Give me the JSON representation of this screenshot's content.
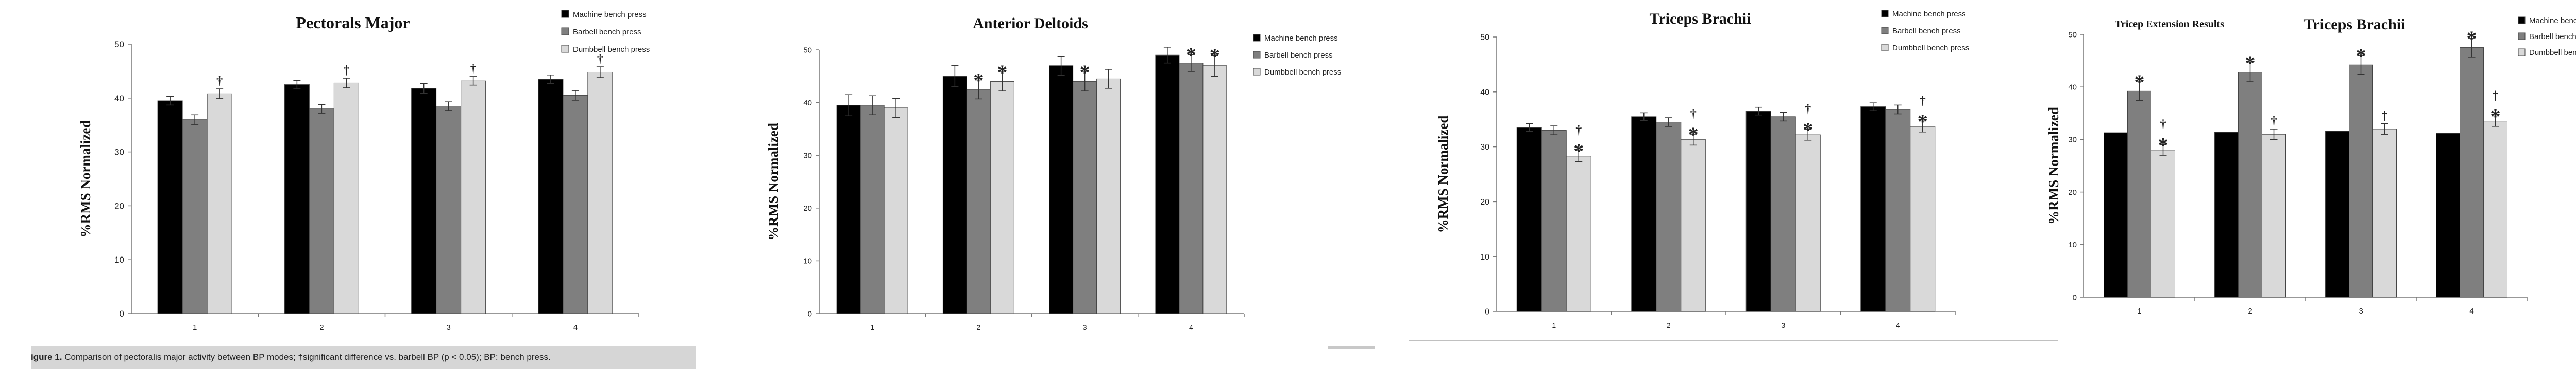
{
  "caption": {
    "label": "igure 1.",
    "text": "Comparison of pectoralis major activity between BP modes; †significant difference vs. barbell BP (p < 0.05); BP: bench press."
  },
  "chart_data": [
    {
      "type": "bar",
      "title": "Pectorals Major",
      "ylabel": "%RMS Normalized",
      "xlabel": "",
      "categories": [
        "1",
        "2",
        "3",
        "4"
      ],
      "ylim": [
        0,
        50
      ],
      "yticks": [
        0,
        10,
        20,
        30,
        40,
        50
      ],
      "legend_position": "top-right",
      "series": [
        {
          "name": "Machine bench press",
          "color": "#000000",
          "values": [
            39.5,
            42.5,
            41.8,
            43.5
          ],
          "errors": [
            0.8,
            0.8,
            0.9,
            0.8
          ],
          "marks": [
            "",
            "",
            "",
            ""
          ]
        },
        {
          "name": "Barbell bench press",
          "color": "#7f7f7f",
          "values": [
            36.0,
            38.0,
            38.5,
            40.5
          ],
          "errors": [
            0.9,
            0.8,
            0.8,
            0.9
          ],
          "marks": [
            "",
            "",
            "",
            ""
          ]
        },
        {
          "name": "Dumbbell bench press",
          "color": "#d9d9d9",
          "values": [
            40.8,
            42.8,
            43.2,
            44.8
          ],
          "errors": [
            0.9,
            0.9,
            0.8,
            1.0
          ],
          "marks": [
            "†",
            "†",
            "†",
            "†"
          ]
        }
      ]
    },
    {
      "type": "bar",
      "title": "Anterior Deltoids",
      "ylabel": "%RMS Normalized",
      "xlabel": "",
      "categories": [
        "1",
        "2",
        "3",
        "4"
      ],
      "ylim": [
        0,
        50
      ],
      "yticks": [
        0,
        10,
        20,
        30,
        40,
        50
      ],
      "legend_position": "right",
      "series": [
        {
          "name": "Machine bench press",
          "color": "#000000",
          "values": [
            39.5,
            45.0,
            47.0,
            49.0
          ],
          "errors": [
            2.0,
            2.0,
            1.8,
            1.5
          ],
          "marks": [
            "",
            "",
            "",
            ""
          ]
        },
        {
          "name": "Barbell bench press",
          "color": "#7f7f7f",
          "values": [
            39.5,
            42.5,
            44.0,
            47.5
          ],
          "errors": [
            1.8,
            1.8,
            1.8,
            1.6
          ],
          "marks": [
            "",
            "*",
            "*",
            "*"
          ]
        },
        {
          "name": "Dumbbell bench press",
          "color": "#d9d9d9",
          "values": [
            39.0,
            44.0,
            44.5,
            47.0
          ],
          "errors": [
            1.8,
            1.8,
            1.8,
            2.0
          ],
          "marks": [
            "",
            "*",
            "",
            "*"
          ]
        }
      ]
    },
    {
      "type": "bar",
      "title": "Triceps Brachii",
      "ylabel": "%RMS Normalized",
      "xlabel": "",
      "categories": [
        "1",
        "2",
        "3",
        "4"
      ],
      "ylim": [
        0,
        50
      ],
      "yticks": [
        0,
        10,
        20,
        30,
        40,
        50
      ],
      "legend_position": "top-right",
      "series": [
        {
          "name": "Machine bench press",
          "color": "#000000",
          "values": [
            33.5,
            35.5,
            36.5,
            37.3
          ],
          "errors": [
            0.7,
            0.7,
            0.7,
            0.7
          ],
          "marks": [
            "",
            "",
            "",
            ""
          ]
        },
        {
          "name": "Barbell bench press",
          "color": "#7f7f7f",
          "values": [
            33.0,
            34.5,
            35.5,
            36.8
          ],
          "errors": [
            0.8,
            0.8,
            0.8,
            0.8
          ],
          "marks": [
            "",
            "",
            "",
            ""
          ]
        },
        {
          "name": "Dumbbell bench press",
          "color": "#d9d9d9",
          "values": [
            28.3,
            31.3,
            32.2,
            33.7
          ],
          "errors": [
            1.0,
            1.0,
            1.0,
            1.0
          ],
          "marks": [
            "†*",
            "†*",
            "†*",
            "†*"
          ]
        }
      ]
    },
    {
      "type": "bar",
      "title": "Triceps Brachii",
      "subtitle": "Tricep Extension Results",
      "ylabel": "%RMS Normalized",
      "xlabel": "",
      "categories": [
        "1",
        "2",
        "3",
        "4"
      ],
      "ylim": [
        0,
        50
      ],
      "yticks": [
        0,
        10,
        20,
        30,
        40,
        50
      ],
      "legend_position": "top-right",
      "series": [
        {
          "name": "Machine bench press",
          "color": "#000000",
          "values": [
            31.3,
            31.4,
            31.6,
            31.2
          ],
          "errors": [
            0,
            0,
            0,
            0
          ],
          "marks": [
            "",
            "",
            "",
            ""
          ]
        },
        {
          "name": "Barbell bench press",
          "color": "#7f7f7f",
          "values": [
            39.2,
            42.8,
            44.2,
            47.5
          ],
          "errors": [
            1.8,
            1.8,
            1.8,
            1.8
          ],
          "marks": [
            "*",
            "*",
            "*",
            "*"
          ]
        },
        {
          "name": "Dumbbell bench press",
          "color": "#d9d9d9",
          "values": [
            28.0,
            31.0,
            32.0,
            33.5
          ],
          "errors": [
            1.0,
            1.0,
            1.0,
            1.0
          ],
          "marks": [
            "†*",
            "†",
            "†",
            "†*"
          ]
        }
      ]
    }
  ]
}
